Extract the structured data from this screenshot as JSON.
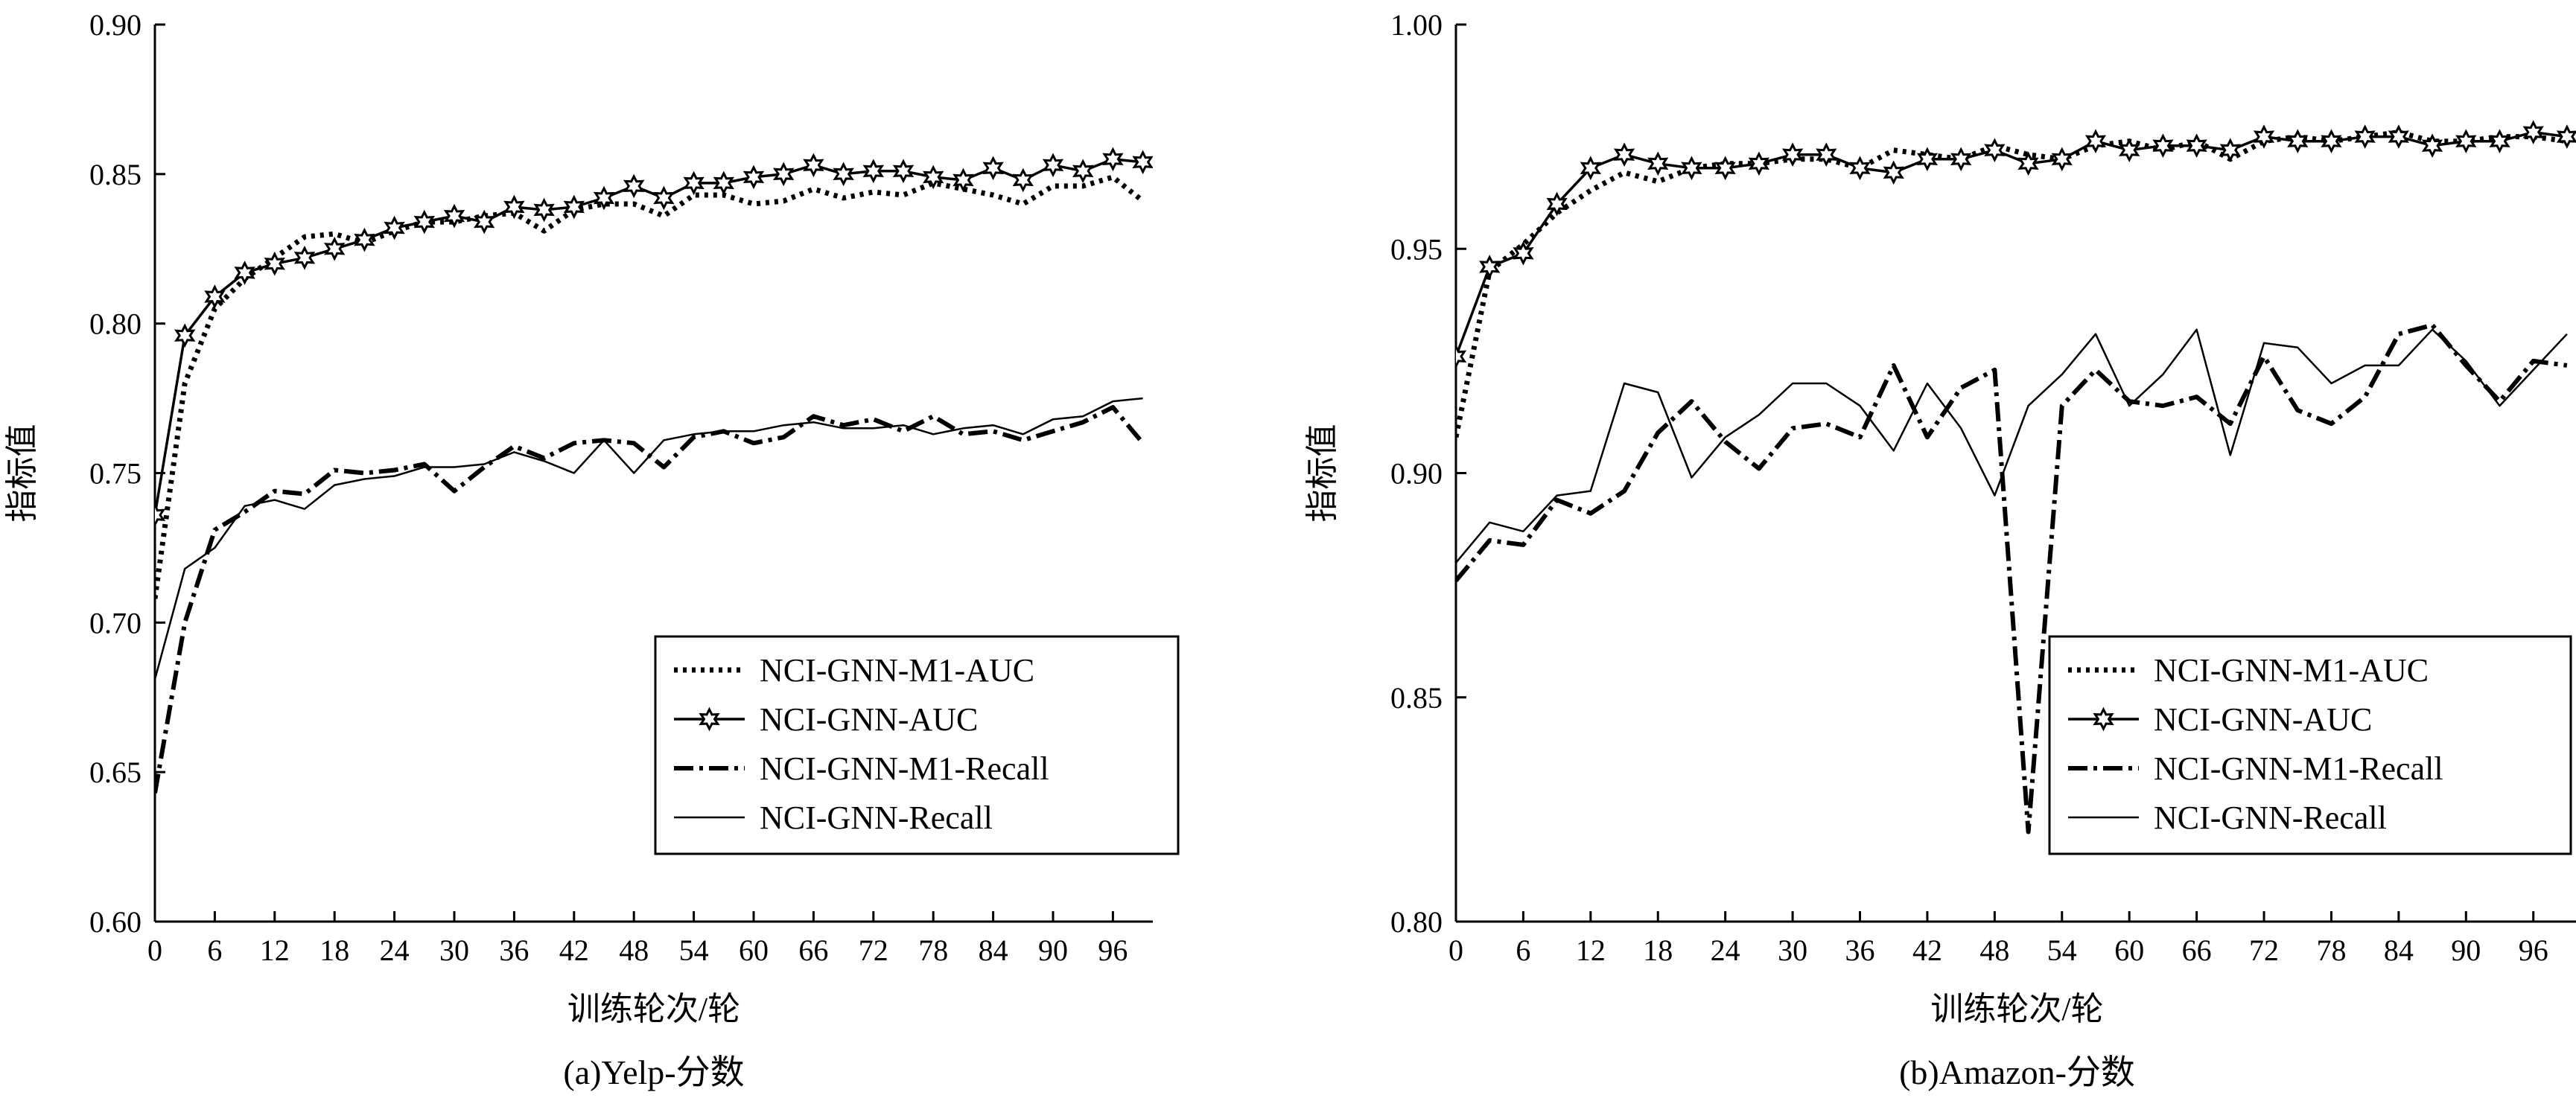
{
  "chart_data": [
    {
      "type": "line",
      "caption": "(a)Yelp-分数",
      "xlabel": "训练轮次/轮",
      "ylabel": "指标值",
      "xlim": [
        0,
        100
      ],
      "ylim": [
        0.6,
        0.9
      ],
      "x_ticks": [
        0,
        6,
        12,
        18,
        24,
        30,
        36,
        42,
        48,
        54,
        60,
        66,
        72,
        78,
        84,
        90,
        96
      ],
      "y_ticks": [
        "0.60",
        "0.65",
        "0.70",
        "0.75",
        "0.80",
        "0.85",
        "0.90"
      ],
      "legend_position": "lower-right",
      "x": [
        0,
        3,
        6,
        9,
        12,
        15,
        18,
        21,
        24,
        27,
        30,
        33,
        36,
        39,
        42,
        45,
        48,
        51,
        54,
        57,
        60,
        63,
        66,
        69,
        72,
        75,
        78,
        81,
        84,
        87,
        90,
        93,
        96,
        99
      ],
      "series": [
        {
          "name": "NCI-GNN-M1-AUC",
          "style": "dotted",
          "values": [
            0.708,
            0.78,
            0.805,
            0.815,
            0.822,
            0.829,
            0.83,
            0.827,
            0.831,
            0.834,
            0.834,
            0.836,
            0.837,
            0.831,
            0.838,
            0.84,
            0.84,
            0.836,
            0.843,
            0.843,
            0.84,
            0.841,
            0.845,
            0.842,
            0.844,
            0.843,
            0.847,
            0.845,
            0.843,
            0.84,
            0.846,
            0.846,
            0.849,
            0.841
          ]
        },
        {
          "name": "NCI-GNN-AUC",
          "style": "solid-star",
          "values": [
            0.736,
            0.796,
            0.809,
            0.817,
            0.82,
            0.822,
            0.825,
            0.828,
            0.832,
            0.834,
            0.836,
            0.834,
            0.839,
            0.838,
            0.839,
            0.842,
            0.846,
            0.842,
            0.847,
            0.847,
            0.849,
            0.85,
            0.853,
            0.85,
            0.851,
            0.851,
            0.849,
            0.848,
            0.852,
            0.848,
            0.853,
            0.851,
            0.855,
            0.854
          ]
        },
        {
          "name": "NCI-GNN-M1-Recall",
          "style": "dash-dot",
          "values": [
            0.643,
            0.7,
            0.731,
            0.737,
            0.744,
            0.743,
            0.751,
            0.75,
            0.751,
            0.753,
            0.744,
            0.752,
            0.759,
            0.755,
            0.76,
            0.761,
            0.76,
            0.752,
            0.762,
            0.764,
            0.76,
            0.762,
            0.769,
            0.766,
            0.768,
            0.764,
            0.769,
            0.763,
            0.764,
            0.761,
            0.764,
            0.767,
            0.772,
            0.76
          ]
        },
        {
          "name": "NCI-GNN-Recall",
          "style": "solid",
          "values": [
            0.681,
            0.718,
            0.725,
            0.739,
            0.741,
            0.738,
            0.746,
            0.748,
            0.749,
            0.752,
            0.752,
            0.753,
            0.757,
            0.754,
            0.75,
            0.761,
            0.75,
            0.761,
            0.763,
            0.764,
            0.764,
            0.766,
            0.767,
            0.765,
            0.765,
            0.766,
            0.763,
            0.765,
            0.766,
            0.763,
            0.768,
            0.769,
            0.774,
            0.775
          ]
        }
      ]
    },
    {
      "type": "line",
      "caption": "(b)Amazon-分数",
      "xlabel": "训练轮次/轮",
      "ylabel": "指标值",
      "xlim": [
        0,
        100
      ],
      "ylim": [
        0.8,
        1.0
      ],
      "x_ticks": [
        0,
        6,
        12,
        18,
        24,
        30,
        36,
        42,
        48,
        54,
        60,
        66,
        72,
        78,
        84,
        90,
        96
      ],
      "y_ticks": [
        "0.80",
        "0.85",
        "0.90",
        "0.95",
        "1.00"
      ],
      "legend_position": "lower-right",
      "x": [
        0,
        3,
        6,
        9,
        12,
        15,
        18,
        21,
        24,
        27,
        30,
        33,
        36,
        39,
        42,
        45,
        48,
        51,
        54,
        57,
        60,
        63,
        66,
        69,
        72,
        75,
        78,
        81,
        84,
        87,
        90,
        93,
        96,
        99
      ],
      "series": [
        {
          "name": "NCI-GNN-M1-AUC",
          "style": "dotted",
          "values": [
            0.908,
            0.945,
            0.951,
            0.958,
            0.963,
            0.967,
            0.965,
            0.968,
            0.969,
            0.969,
            0.97,
            0.97,
            0.968,
            0.972,
            0.971,
            0.97,
            0.973,
            0.971,
            0.97,
            0.973,
            0.974,
            0.972,
            0.974,
            0.97,
            0.974,
            0.975,
            0.974,
            0.975,
            0.976,
            0.974,
            0.974,
            0.975,
            0.975,
            0.974
          ]
        },
        {
          "name": "NCI-GNN-AUC",
          "style": "solid-star",
          "values": [
            0.926,
            0.946,
            0.949,
            0.96,
            0.968,
            0.971,
            0.969,
            0.968,
            0.968,
            0.969,
            0.971,
            0.971,
            0.968,
            0.967,
            0.97,
            0.97,
            0.972,
            0.969,
            0.97,
            0.974,
            0.972,
            0.973,
            0.973,
            0.972,
            0.975,
            0.974,
            0.974,
            0.975,
            0.975,
            0.973,
            0.974,
            0.974,
            0.976,
            0.975
          ]
        },
        {
          "name": "NCI-GNN-M1-Recall",
          "style": "dash-dot",
          "values": [
            0.876,
            0.885,
            0.884,
            0.894,
            0.891,
            0.896,
            0.909,
            0.916,
            0.907,
            0.901,
            0.91,
            0.911,
            0.908,
            0.924,
            0.908,
            0.919,
            0.923,
            0.82,
            0.915,
            0.923,
            0.916,
            0.915,
            0.917,
            0.911,
            0.926,
            0.914,
            0.911,
            0.917,
            0.931,
            0.933,
            0.924,
            0.916,
            0.925,
            0.924
          ]
        },
        {
          "name": "NCI-GNN-Recall",
          "style": "solid",
          "values": [
            0.88,
            0.889,
            0.887,
            0.895,
            0.896,
            0.92,
            0.918,
            0.899,
            0.908,
            0.913,
            0.92,
            0.92,
            0.915,
            0.905,
            0.92,
            0.91,
            0.895,
            0.915,
            0.922,
            0.931,
            0.915,
            0.922,
            0.932,
            0.904,
            0.929,
            0.928,
            0.92,
            0.924,
            0.924,
            0.932,
            0.925,
            0.915,
            0.923,
            0.931
          ]
        }
      ]
    }
  ]
}
